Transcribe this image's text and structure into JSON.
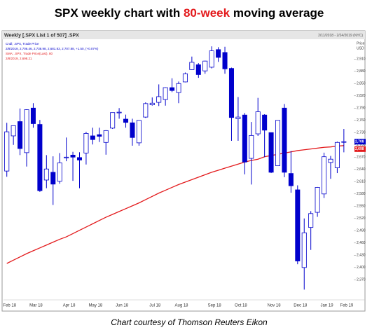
{
  "chart_data": {
    "type": "candlestick",
    "title_parts": [
      "SPX weekly chart with",
      "80-week",
      "moving average"
    ],
    "header_left": "Weekly [.SPX List 1 of 507] .SPX",
    "header_right": "2/11/2018 - 2/24/2019 (NYC)",
    "axis_unit_labels": [
      "Price",
      "USD"
    ],
    "caption": "Chart courtesy of Thomson Reuters Eikon",
    "candle": {
      "name": "Cndl; .SPX, Trade Price",
      "info": "2/8/2019, 2,706.46, 2,738.98, 2,681.83, 2,707.88, +1.50, (+0.07%)",
      "color": "#0000cc",
      "tag": "2,708",
      "open": [
        2636,
        2722,
        2757,
        2681,
        2790,
        2750,
        2614,
        2633,
        2611,
        2670,
        2675,
        2669,
        2680,
        2722,
        2725,
        2706,
        2741,
        2780,
        2763,
        2754,
        2705,
        2768,
        2798,
        2804,
        2811,
        2840,
        2828,
        2854,
        2884,
        2896,
        2881,
        2890,
        2933,
        2926,
        2887,
        2764,
        2773,
        2667,
        2727,
        2773,
        2730,
        2649,
        2790,
        2630,
        2590,
        2400,
        2498,
        2535,
        2580,
        2657,
        2644,
        2706.46
      ],
      "high": [
        2754,
        2747,
        2789,
        2787,
        2802,
        2761,
        2675,
        2672,
        2680,
        2718,
        2683,
        2682,
        2732,
        2742,
        2742,
        2736,
        2779,
        2790,
        2774,
        2764,
        2760,
        2804,
        2816,
        2848,
        2841,
        2863,
        2855,
        2877,
        2916,
        2900,
        2906,
        2941,
        2939,
        2940,
        2889,
        2817,
        2778,
        2756,
        2815,
        2775,
        2730,
        2760,
        2800,
        2685,
        2601,
        2520,
        2538,
        2597,
        2681,
        2673,
        2708,
        2738.98
      ],
      "low": [
        2622,
        2700,
        2675,
        2647,
        2742,
        2585,
        2594,
        2553,
        2605,
        2660,
        2612,
        2594,
        2652,
        2701,
        2707,
        2676,
        2739,
        2764,
        2742,
        2698,
        2698,
        2766,
        2796,
        2795,
        2796,
        2829,
        2802,
        2853,
        2883,
        2864,
        2874,
        2887,
        2903,
        2874,
        2710,
        2710,
        2628,
        2603,
        2722,
        2670,
        2631,
        2649,
        2621,
        2583,
        2408,
        2346,
        2443,
        2524,
        2570,
        2617,
        2631,
        2681.83
      ],
      "close": [
        2732,
        2747,
        2691,
        2786,
        2752,
        2588,
        2641,
        2604,
        2656,
        2670,
        2670,
        2663,
        2728,
        2713,
        2721,
        2735,
        2779,
        2780,
        2755,
        2718,
        2760,
        2801,
        2802,
        2818,
        2840,
        2833,
        2850,
        2874,
        2902,
        2872,
        2905,
        2930,
        2914,
        2886,
        2767,
        2768,
        2658,
        2723,
        2781,
        2736,
        2633,
        2760,
        2633,
        2600,
        2416,
        2485,
        2532,
        2596,
        2671,
        2665,
        2706,
        2707.88
      ]
    },
    "ma": {
      "name": "SMA; .SPX, Trade Price(Last), 80",
      "info": "2/8/2019, 2,698.21",
      "color": "#e31a1c",
      "tag": "2,698",
      "values": [
        2410,
        2418,
        2426,
        2434,
        2441,
        2448,
        2455,
        2462,
        2469,
        2475,
        2483,
        2491,
        2499,
        2507,
        2515,
        2523,
        2530,
        2537,
        2544,
        2551,
        2558,
        2566,
        2574,
        2582,
        2589,
        2596,
        2603,
        2609,
        2615,
        2621,
        2627,
        2633,
        2638,
        2643,
        2648,
        2653,
        2658,
        2662,
        2665,
        2671,
        2674,
        2677,
        2680,
        2683,
        2686,
        2688,
        2690,
        2692,
        2694,
        2695,
        2697,
        2698.21
      ]
    },
    "categories": [
      "Feb 18",
      null,
      null,
      null,
      "Mar 18",
      null,
      null,
      null,
      null,
      "Apr 18",
      null,
      null,
      null,
      "May 18",
      null,
      null,
      null,
      "Jun 18",
      null,
      null,
      null,
      null,
      "Jul 18",
      null,
      null,
      null,
      "Aug 18",
      null,
      null,
      null,
      null,
      "Sep 18",
      null,
      null,
      null,
      "Oct 18",
      null,
      null,
      null,
      null,
      "Nov 18",
      null,
      null,
      null,
      "Dec 18",
      null,
      null,
      null,
      "Jan 19",
      null,
      null,
      "Feb 19"
    ],
    "ylim": [
      2326,
      2955
    ],
    "yticks": [
      {
        "value": 2370,
        "label": "2,370"
      },
      {
        "value": 2400,
        "label": "2,400"
      },
      {
        "value": 2430,
        "label": "2,430"
      },
      {
        "value": 2460,
        "label": "2,460"
      },
      {
        "value": 2490,
        "label": "2,490"
      },
      {
        "value": 2520,
        "label": "2,520"
      },
      {
        "value": 2550,
        "label": "2,550"
      },
      {
        "value": 2580,
        "label": "2,580"
      },
      {
        "value": 2610,
        "label": "2,610"
      },
      {
        "value": 2640,
        "label": "2,640"
      },
      {
        "value": 2670,
        "label": "2,670"
      },
      {
        "value": 2700,
        "label": "2,700"
      },
      {
        "value": 2730,
        "label": "2,730"
      },
      {
        "value": 2760,
        "label": "2,760"
      },
      {
        "value": 2790,
        "label": "2,790"
      },
      {
        "value": 2820,
        "label": "2,820"
      },
      {
        "value": 2850,
        "label": "2,850"
      },
      {
        "value": 2880,
        "label": "2,880"
      },
      {
        "value": 2910,
        "label": "2,910"
      }
    ],
    "grid": false
  }
}
